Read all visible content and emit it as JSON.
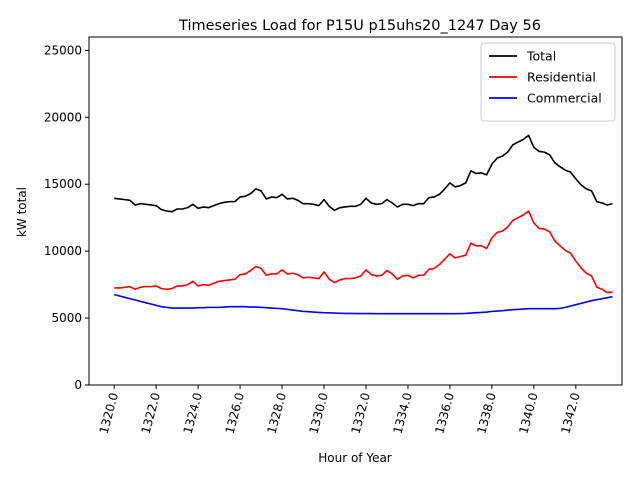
{
  "chart_data": {
    "type": "line",
    "title": "Timeseries Load for P15U p15uhs20_1247  Day 56",
    "xlabel": "Hour of Year",
    "ylabel": "kW total",
    "xlim": [
      1318.8,
      1344.2
    ],
    "ylim": [
      0,
      26000
    ],
    "xticks": [
      1320,
      1322,
      1324,
      1326,
      1328,
      1330,
      1332,
      1334,
      1336,
      1338,
      1340,
      1342
    ],
    "xtick_labels": [
      "1320.0",
      "1322.0",
      "1324.0",
      "1326.0",
      "1328.0",
      "1330.0",
      "1332.0",
      "1334.0",
      "1336.0",
      "1338.0",
      "1340.0",
      "1342.0"
    ],
    "yticks": [
      0,
      5000,
      10000,
      15000,
      20000,
      25000
    ],
    "ytick_labels": [
      "0",
      "5000",
      "10000",
      "15000",
      "20000",
      "25000"
    ],
    "legend_position": "top-right",
    "x": {
      "start": 1320,
      "step": 0.25,
      "count": 96
    },
    "series": [
      {
        "name": "Total",
        "color": "#000000",
        "values": [
          13950,
          13900,
          13850,
          13800,
          13450,
          13550,
          13500,
          13450,
          13400,
          13100,
          13000,
          12950,
          13150,
          13150,
          13250,
          13500,
          13200,
          13300,
          13250,
          13400,
          13550,
          13650,
          13700,
          13700,
          14050,
          14100,
          14300,
          14650,
          14500,
          13900,
          14050,
          14000,
          14250,
          13900,
          13950,
          13800,
          13550,
          13550,
          13500,
          13400,
          13850,
          13350,
          13050,
          13250,
          13300,
          13350,
          13350,
          13500,
          13950,
          13600,
          13500,
          13550,
          13850,
          13600,
          13300,
          13500,
          13500,
          13400,
          13550,
          13550,
          14000,
          14050,
          14250,
          14650,
          15100,
          14800,
          14900,
          15100,
          16000,
          15800,
          15850,
          15700,
          16500,
          16950,
          17100,
          17400,
          17950,
          18150,
          18350,
          18650,
          17750,
          17450,
          17400,
          17200,
          16600,
          16300,
          16050,
          15900,
          15400,
          14950,
          14650,
          14500,
          13700,
          13600,
          13450,
          13550
        ]
      },
      {
        "name": "Residential",
        "color": "#ff0000",
        "values": [
          7250,
          7250,
          7300,
          7350,
          7150,
          7300,
          7350,
          7350,
          7400,
          7200,
          7150,
          7200,
          7400,
          7400,
          7500,
          7750,
          7400,
          7500,
          7450,
          7600,
          7750,
          7800,
          7850,
          7900,
          8250,
          8300,
          8550,
          8850,
          8700,
          8200,
          8300,
          8300,
          8600,
          8300,
          8350,
          8250,
          8000,
          8050,
          8000,
          7950,
          8450,
          7900,
          7650,
          7850,
          7950,
          7950,
          8000,
          8150,
          8600,
          8250,
          8150,
          8200,
          8550,
          8300,
          7900,
          8150,
          8200,
          8000,
          8200,
          8200,
          8650,
          8700,
          9000,
          9400,
          9800,
          9500,
          9600,
          9700,
          10600,
          10400,
          10400,
          10200,
          11000,
          11400,
          11500,
          11800,
          12300,
          12500,
          12700,
          13000,
          12100,
          11700,
          11650,
          11450,
          10750,
          10400,
          10050,
          9850,
          9250,
          8750,
          8350,
          8150,
          7300,
          7150,
          6900,
          6950
        ]
      },
      {
        "name": "Commercial",
        "color": "#0000ff",
        "values": [
          6750,
          6650,
          6550,
          6450,
          6350,
          6250,
          6150,
          6050,
          5950,
          5850,
          5800,
          5750,
          5750,
          5750,
          5750,
          5750,
          5775,
          5775,
          5800,
          5800,
          5800,
          5825,
          5850,
          5850,
          5850,
          5850,
          5825,
          5825,
          5800,
          5775,
          5750,
          5725,
          5700,
          5650,
          5600,
          5550,
          5500,
          5475,
          5450,
          5425,
          5400,
          5390,
          5375,
          5360,
          5350,
          5345,
          5340,
          5340,
          5340,
          5335,
          5330,
          5330,
          5330,
          5330,
          5325,
          5325,
          5325,
          5325,
          5325,
          5325,
          5325,
          5325,
          5325,
          5325,
          5325,
          5330,
          5340,
          5350,
          5375,
          5400,
          5425,
          5450,
          5500,
          5525,
          5550,
          5600,
          5625,
          5650,
          5675,
          5700,
          5700,
          5700,
          5700,
          5700,
          5700,
          5725,
          5800,
          5900,
          6000,
          6100,
          6200,
          6300,
          6375,
          6450,
          6525,
          6600
        ]
      }
    ]
  }
}
